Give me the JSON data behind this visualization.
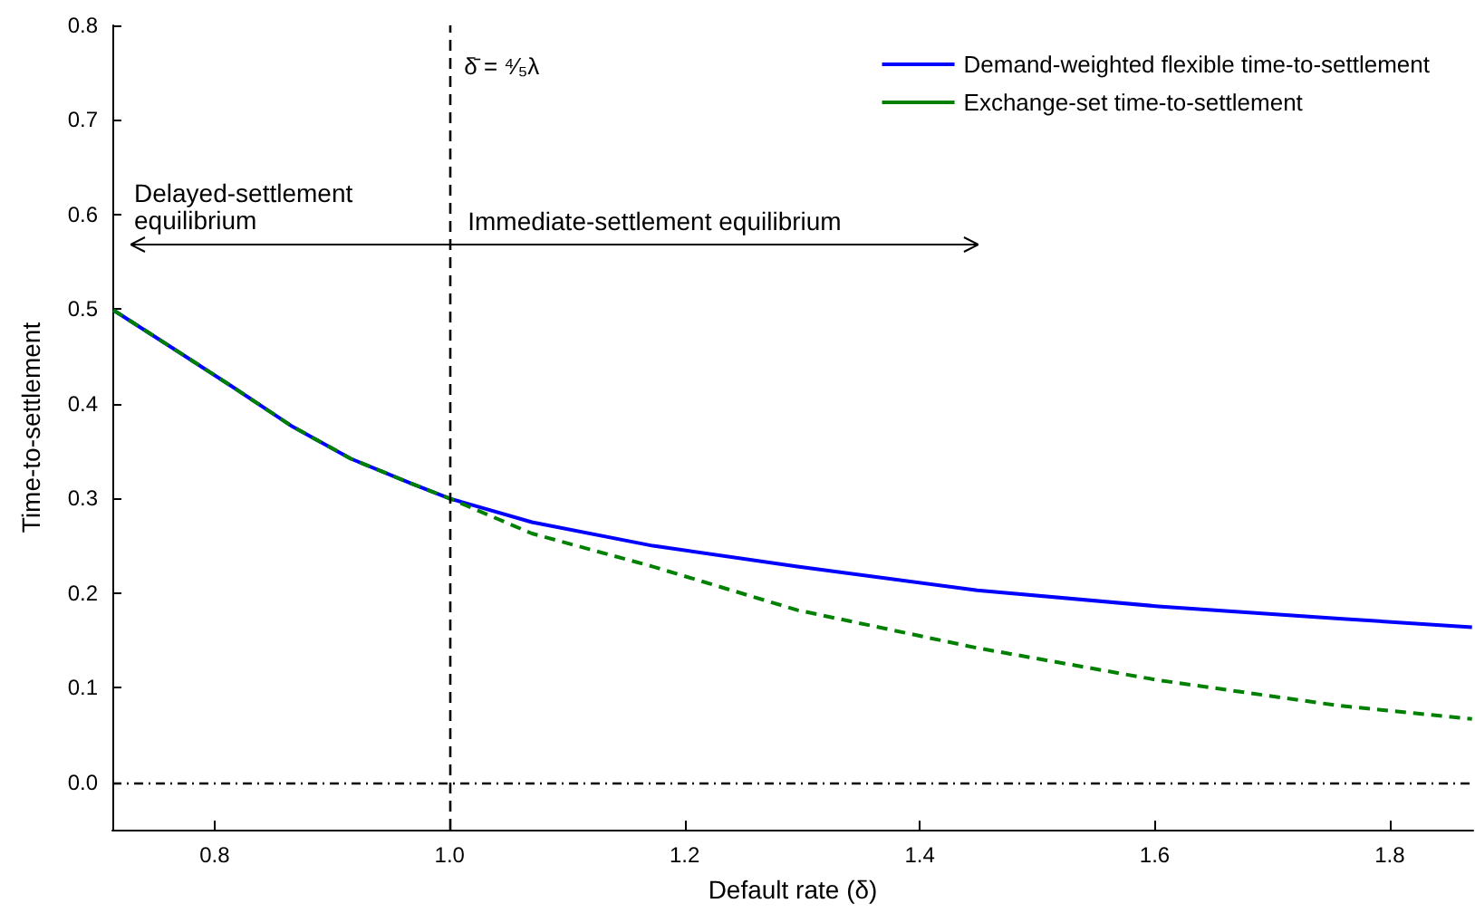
{
  "chart_data": {
    "type": "line",
    "xlabel": "Default rate (δ)",
    "ylabel": "Time-to-settlement",
    "xlim": [
      0.713,
      1.871
    ],
    "ylim": [
      -0.05,
      0.8
    ],
    "xticks": [
      0.8,
      {
        "value": 1,
        "label": "1.0"
      },
      1.2,
      1.4,
      1.6,
      1.8
    ],
    "yticks": [
      {
        "value": 0,
        "label": "0.0"
      },
      0.1,
      0.2,
      0.3,
      0.4,
      0.5,
      0.6,
      0.7,
      0.8
    ],
    "series": [
      {
        "name": "Demand-weighted flexible time-to-settlement",
        "color": "#0000ff",
        "line_style": "solid",
        "x": [
          0.714,
          0.763,
          0.814,
          0.865,
          0.916,
          0.967,
          1.0,
          1.07,
          1.173,
          1.296,
          1.449,
          1.603,
          1.757,
          1.87
        ],
        "values": [
          0.499,
          0.46,
          0.419,
          0.377,
          0.342,
          0.316,
          0.3,
          0.275,
          0.25,
          0.228,
          0.203,
          0.186,
          0.173,
          0.164
        ]
      },
      {
        "name": "Exchange-set time-to-settlement",
        "color": "#008000",
        "line_style": "dashed",
        "x": [
          0.714,
          0.763,
          0.814,
          0.865,
          0.916,
          0.967,
          1.0,
          1.07,
          1.173,
          1.296,
          1.449,
          1.603,
          1.757,
          1.87
        ],
        "values": [
          0.499,
          0.46,
          0.419,
          0.377,
          0.342,
          0.316,
          0.3,
          0.263,
          0.228,
          0.182,
          0.142,
          0.108,
          0.081,
          0.067
        ]
      }
    ],
    "ref_lines": [
      {
        "axis": "x",
        "value": 1,
        "label": "δ̄ = ⁴⁄₅λ",
        "color": "#000000",
        "line_style": "dashed"
      },
      {
        "axis": "y",
        "value": 0,
        "color": "#000000",
        "line_style": "dotted"
      }
    ],
    "annotations": [
      "Delayed-settlement equilibrium",
      "Immediate-settlement equilibrium"
    ],
    "legend": "top right",
    "grid": false,
    "marker": "none"
  }
}
